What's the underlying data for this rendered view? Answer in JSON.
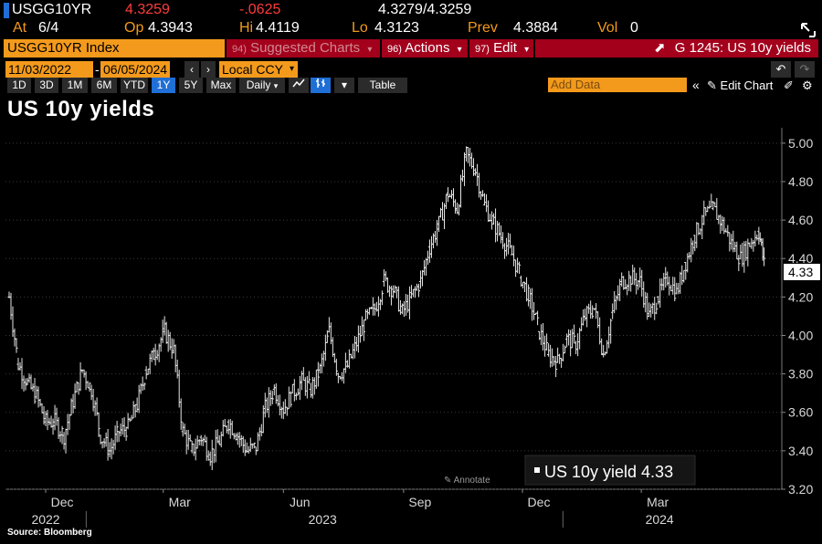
{
  "quote": {
    "ticker": "USGG10YR",
    "last": "4.3259",
    "change": "-.0625",
    "bid_ask": "4.3279/4.3259"
  },
  "stats": {
    "at_label": "At",
    "at_value": "6/4",
    "open_label": "Op",
    "open_value": "4.3943",
    "high_label": "Hi",
    "high_value": "4.4119",
    "low_label": "Lo",
    "low_value": "4.3123",
    "prev_label": "Prev",
    "prev_value": "4.3884",
    "vol_label": "Vol",
    "vol_value": "0"
  },
  "command_bar": {
    "security": "USGG10YR Index",
    "suggested_num": "94)",
    "suggested_label": "Suggested Charts",
    "actions_num": "96)",
    "actions_label": "Actions",
    "edit_num": "97)",
    "edit_label": "Edit",
    "graph_label": "G 1245: US 10y yields"
  },
  "date_range": {
    "start": "11/03/2022",
    "separator": "-",
    "end": "06/05/2024",
    "currency": "Local CCY"
  },
  "toolbar": {
    "periods": [
      "1D",
      "3D",
      "1M",
      "6M",
      "YTD",
      "1Y",
      "5Y",
      "Max"
    ],
    "active_period": "1Y",
    "frequency": "Daily",
    "table_label": "Table",
    "add_data_placeholder": "Add Data",
    "edit_chart_label": "Edit Chart"
  },
  "chart_title": "US 10y yields",
  "legend": {
    "label": "US 10y yield",
    "value": "4.33"
  },
  "annotate_label": "Annotate",
  "source": "Source: Bloomberg",
  "colors": {
    "accent_orange": "#f39a1c",
    "menu_red": "#a3001c",
    "active_blue": "#1f6fd6",
    "last_price": "#ff3b3b",
    "change_negative": "#ff3b3b"
  },
  "chart_data": {
    "type": "ohlc",
    "title": "US 10y yields",
    "y_ticks": [
      "5.00",
      "4.80",
      "4.60",
      "4.40",
      "4.20",
      "4.00",
      "3.80",
      "3.60",
      "3.40",
      "3.20"
    ],
    "ylim": [
      3.2,
      5.08
    ],
    "x_month_labels": [
      "Dec",
      "Mar",
      "Jun",
      "Sep",
      "Dec",
      "Mar"
    ],
    "x_year_labels": [
      "2022",
      "2023",
      "2024"
    ],
    "last_value_label": "4.33",
    "grid": true,
    "series": [
      {
        "name": "US 10y yield",
        "x": [
          "2022-11-03",
          "2022-11-10",
          "2022-11-17",
          "2022-11-24",
          "2022-12-01",
          "2022-12-08",
          "2022-12-15",
          "2022-12-22",
          "2022-12-29",
          "2023-01-05",
          "2023-01-12",
          "2023-01-19",
          "2023-01-26",
          "2023-02-02",
          "2023-02-09",
          "2023-02-16",
          "2023-02-23",
          "2023-03-02",
          "2023-03-09",
          "2023-03-16",
          "2023-03-23",
          "2023-03-30",
          "2023-04-06",
          "2023-04-13",
          "2023-04-20",
          "2023-04-27",
          "2023-05-04",
          "2023-05-11",
          "2023-05-18",
          "2023-05-25",
          "2023-06-01",
          "2023-06-08",
          "2023-06-15",
          "2023-06-22",
          "2023-06-29",
          "2023-07-06",
          "2023-07-13",
          "2023-07-20",
          "2023-07-27",
          "2023-08-03",
          "2023-08-10",
          "2023-08-17",
          "2023-08-24",
          "2023-08-31",
          "2023-09-07",
          "2023-09-14",
          "2023-09-21",
          "2023-09-28",
          "2023-10-05",
          "2023-10-12",
          "2023-10-19",
          "2023-10-26",
          "2023-11-02",
          "2023-11-09",
          "2023-11-16",
          "2023-11-23",
          "2023-11-30",
          "2023-12-07",
          "2023-12-14",
          "2023-12-21",
          "2023-12-28",
          "2024-01-04",
          "2024-01-11",
          "2024-01-18",
          "2024-01-25",
          "2024-02-01",
          "2024-02-08",
          "2024-02-15",
          "2024-02-22",
          "2024-02-29",
          "2024-03-07",
          "2024-03-14",
          "2024-03-21",
          "2024-03-28",
          "2024-04-04",
          "2024-04-11",
          "2024-04-18",
          "2024-04-25",
          "2024-05-02",
          "2024-05-09",
          "2024-05-16",
          "2024-05-23",
          "2024-05-30",
          "2024-06-04"
        ],
        "close": [
          4.2,
          3.85,
          3.75,
          3.68,
          3.55,
          3.55,
          3.48,
          3.66,
          3.82,
          3.72,
          3.48,
          3.4,
          3.5,
          3.52,
          3.64,
          3.82,
          3.92,
          4.02,
          3.92,
          3.5,
          3.4,
          3.47,
          3.38,
          3.45,
          3.55,
          3.48,
          3.4,
          3.42,
          3.62,
          3.72,
          3.62,
          3.7,
          3.76,
          3.72,
          3.82,
          4.02,
          3.8,
          3.84,
          3.96,
          4.08,
          4.14,
          4.28,
          4.24,
          4.12,
          4.2,
          4.28,
          4.46,
          4.58,
          4.74,
          4.66,
          4.94,
          4.86,
          4.68,
          4.58,
          4.5,
          4.42,
          4.3,
          4.18,
          4.02,
          3.9,
          3.86,
          3.98,
          3.96,
          4.1,
          4.14,
          3.9,
          4.12,
          4.28,
          4.3,
          4.28,
          4.1,
          4.2,
          4.3,
          4.22,
          4.38,
          4.52,
          4.62,
          4.66,
          4.58,
          4.48,
          4.4,
          4.48,
          4.54,
          4.33
        ]
      }
    ]
  }
}
